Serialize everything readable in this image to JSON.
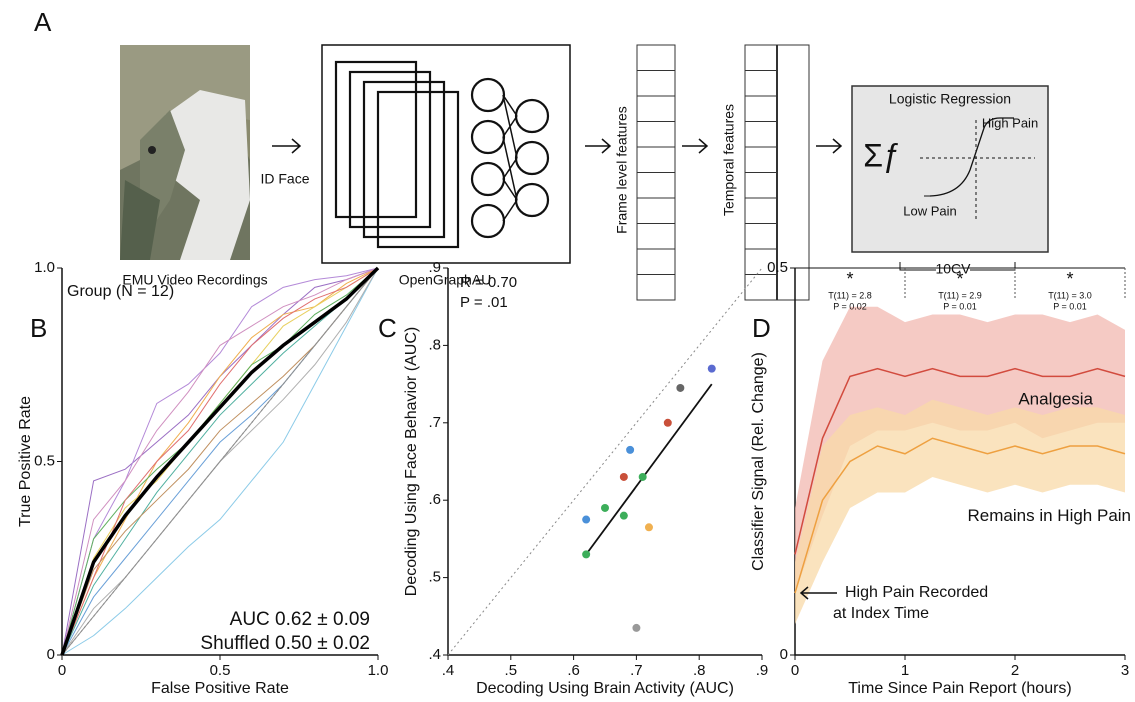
{
  "panel_a": {
    "letter": "A",
    "video_caption": "EMU Video Recordings",
    "id_face": "ID Face",
    "model": "OpenGraphAU",
    "frame_features": "Frame level features",
    "temporal_features": "Temporal features",
    "classifier_title": "Logistic Regression",
    "sum_f": "Σƒ",
    "high": "High Pain",
    "low": "Low Pain",
    "cv": "10CV"
  },
  "chart_data": [
    {
      "type": "line",
      "panel": "B",
      "title": "Group (N = 12)",
      "x_label": "False Positive Rate",
      "y_label": "True Positive Rate",
      "x": [
        0,
        0.1,
        0.2,
        0.3,
        0.4,
        0.5,
        0.6,
        0.7,
        0.8,
        0.9,
        1
      ],
      "xlim": [
        0,
        1
      ],
      "ylim": [
        0,
        1
      ],
      "xticks": [
        0,
        0.5,
        {
          "value": 1,
          "label": "1.0"
        }
      ],
      "yticks": [
        0,
        0.5,
        {
          "value": 1,
          "label": "1.0"
        }
      ],
      "series": [
        {
          "color": "#9b6fc4",
          "values": [
            0,
            0.45,
            0.48,
            0.55,
            0.62,
            0.72,
            0.8,
            0.88,
            0.95,
            0.97,
            1
          ]
        },
        {
          "color": "#b48ad8",
          "values": [
            0,
            0.3,
            0.45,
            0.65,
            0.7,
            0.78,
            0.9,
            0.95,
            0.97,
            0.98,
            1
          ]
        },
        {
          "color": "#f0b050",
          "values": [
            0,
            0.2,
            0.35,
            0.5,
            0.6,
            0.72,
            0.82,
            0.88,
            0.9,
            0.96,
            1
          ]
        },
        {
          "color": "#e8d060",
          "values": [
            0,
            0.25,
            0.38,
            0.45,
            0.55,
            0.65,
            0.75,
            0.85,
            0.9,
            0.95,
            1
          ]
        },
        {
          "color": "#6aa0d8",
          "values": [
            0,
            0.15,
            0.25,
            0.35,
            0.45,
            0.55,
            0.62,
            0.7,
            0.8,
            0.9,
            1
          ]
        },
        {
          "color": "#8ccbe8",
          "values": [
            0,
            0.05,
            0.12,
            0.2,
            0.28,
            0.35,
            0.45,
            0.55,
            0.7,
            0.85,
            1
          ]
        },
        {
          "color": "#60b060",
          "values": [
            0,
            0.3,
            0.4,
            0.48,
            0.55,
            0.65,
            0.75,
            0.8,
            0.88,
            0.93,
            1
          ]
        },
        {
          "color": "#e07070",
          "values": [
            0,
            0.2,
            0.4,
            0.5,
            0.58,
            0.7,
            0.8,
            0.87,
            0.92,
            0.95,
            1
          ]
        },
        {
          "color": "#d090c0",
          "values": [
            0,
            0.35,
            0.45,
            0.58,
            0.68,
            0.8,
            0.85,
            0.9,
            0.93,
            0.97,
            1
          ]
        },
        {
          "color": "#50b0a0",
          "values": [
            0,
            0.18,
            0.3,
            0.42,
            0.52,
            0.62,
            0.7,
            0.78,
            0.85,
            0.92,
            1
          ]
        },
        {
          "color": "#c09060",
          "values": [
            0,
            0.22,
            0.32,
            0.4,
            0.48,
            0.58,
            0.65,
            0.72,
            0.8,
            0.9,
            1
          ]
        },
        {
          "color": "#b0b0b0",
          "values": [
            0,
            0.12,
            0.2,
            0.3,
            0.4,
            0.5,
            0.58,
            0.66,
            0.75,
            0.86,
            1
          ]
        },
        {
          "color": "#909090",
          "values": [
            0,
            0.1,
            0.2,
            0.3,
            0.4,
            0.5,
            0.6,
            0.7,
            0.8,
            0.9,
            1
          ]
        },
        {
          "color": "#000000",
          "values": [
            0,
            0.24,
            0.36,
            0.46,
            0.55,
            0.64,
            0.73,
            0.8,
            0.86,
            0.92,
            1
          ]
        }
      ],
      "annotations": [
        {
          "text": "AUC 0.62 ± 0.09",
          "color": "#3d8b6e"
        },
        {
          "text": "Shuffled 0.50 ± 0.02",
          "color": "#8a8a8a"
        }
      ]
    },
    {
      "type": "scatter",
      "panel": "C",
      "x_label": "Decoding Using Brain Activity (AUC)",
      "y_label": "Decoding Using Face Behavior (AUC)",
      "x": [
        0.62,
        0.62,
        0.65,
        0.68,
        0.68,
        0.69,
        0.71,
        0.72,
        0.7,
        0.75,
        0.77,
        0.82
      ],
      "values": [
        0.575,
        0.53,
        0.59,
        0.63,
        0.58,
        0.665,
        0.63,
        0.565,
        0.435,
        0.7,
        0.745,
        0.77
      ],
      "point_colors": [
        "#4a90d9",
        "#3cae5a",
        "#3cae5a",
        "#c9503a",
        "#3cae5a",
        "#4a90d9",
        "#3cae5a",
        "#f0b050",
        "#999999",
        "#c9503a",
        "#666666",
        "#5a6ad0"
      ],
      "fit": {
        "x": [
          0.62,
          0.82
        ],
        "values": [
          0.53,
          0.75
        ]
      },
      "xlim": [
        0.4,
        0.9
      ],
      "ylim": [
        0.4,
        0.9
      ],
      "xticks": [
        {
          "value": 0.4,
          "label": ".4"
        },
        {
          "value": 0.5,
          "label": ".5"
        },
        {
          "value": 0.6,
          "label": ".6"
        },
        {
          "value": 0.7,
          "label": ".7"
        },
        {
          "value": 0.8,
          "label": ".8"
        },
        {
          "value": 0.9,
          "label": ".9"
        }
      ],
      "yticks": [
        {
          "value": 0.4,
          "label": ".4"
        },
        {
          "value": 0.5,
          "label": ".5"
        },
        {
          "value": 0.6,
          "label": ".6"
        },
        {
          "value": 0.7,
          "label": ".7"
        },
        {
          "value": 0.8,
          "label": ".8"
        },
        {
          "value": 0.9,
          "label": ".9"
        }
      ],
      "stats": [
        "R = 0.70",
        "P = .01"
      ]
    },
    {
      "type": "line",
      "panel": "D",
      "x_label": "Time Since Pain Report (hours)",
      "y_label": "Classifier Signal (Rel. Change)",
      "x": [
        0,
        0.25,
        0.5,
        0.75,
        1,
        1.25,
        1.5,
        1.75,
        2,
        2.25,
        2.5,
        2.75,
        3
      ],
      "xlim": [
        0,
        3
      ],
      "ylim": [
        0,
        0.5
      ],
      "xticks": [
        0,
        1,
        2,
        3
      ],
      "yticks": [
        0,
        0.5
      ],
      "series": [
        {
          "name": "Analgesia",
          "color": "#d24b3e",
          "band_color": "#f2b8b0",
          "values": [
            0.13,
            0.28,
            0.36,
            0.37,
            0.36,
            0.37,
            0.36,
            0.36,
            0.37,
            0.36,
            0.36,
            0.37,
            0.36
          ],
          "upper": [
            0.19,
            0.38,
            0.45,
            0.45,
            0.43,
            0.44,
            0.44,
            0.43,
            0.44,
            0.44,
            0.43,
            0.44,
            0.42
          ],
          "lower": [
            0.08,
            0.18,
            0.27,
            0.29,
            0.29,
            0.3,
            0.29,
            0.29,
            0.3,
            0.28,
            0.29,
            0.3,
            0.3
          ]
        },
        {
          "name": "Remains in High Pain",
          "color": "#eea040",
          "band_color": "#f8d9a8",
          "values": [
            0.08,
            0.2,
            0.25,
            0.27,
            0.26,
            0.28,
            0.27,
            0.26,
            0.27,
            0.26,
            0.27,
            0.27,
            0.26
          ],
          "upper": [
            0.12,
            0.27,
            0.31,
            0.32,
            0.31,
            0.33,
            0.32,
            0.31,
            0.32,
            0.31,
            0.32,
            0.32,
            0.31
          ],
          "lower": [
            0.04,
            0.12,
            0.19,
            0.21,
            0.21,
            0.23,
            0.22,
            0.21,
            0.22,
            0.21,
            0.22,
            0.22,
            0.21
          ]
        }
      ],
      "tests": [
        {
          "star": "*",
          "t": "T(11) = 2.8",
          "p": "P = 0.02"
        },
        {
          "star": "*",
          "t": "T(11) = 2.9",
          "p": "P = 0.01"
        },
        {
          "star": "*",
          "t": "T(11) = 3.0",
          "p": "P = 0.01"
        }
      ],
      "annotation_lines": [
        "High Pain Recorded",
        "at Index Time"
      ]
    }
  ]
}
